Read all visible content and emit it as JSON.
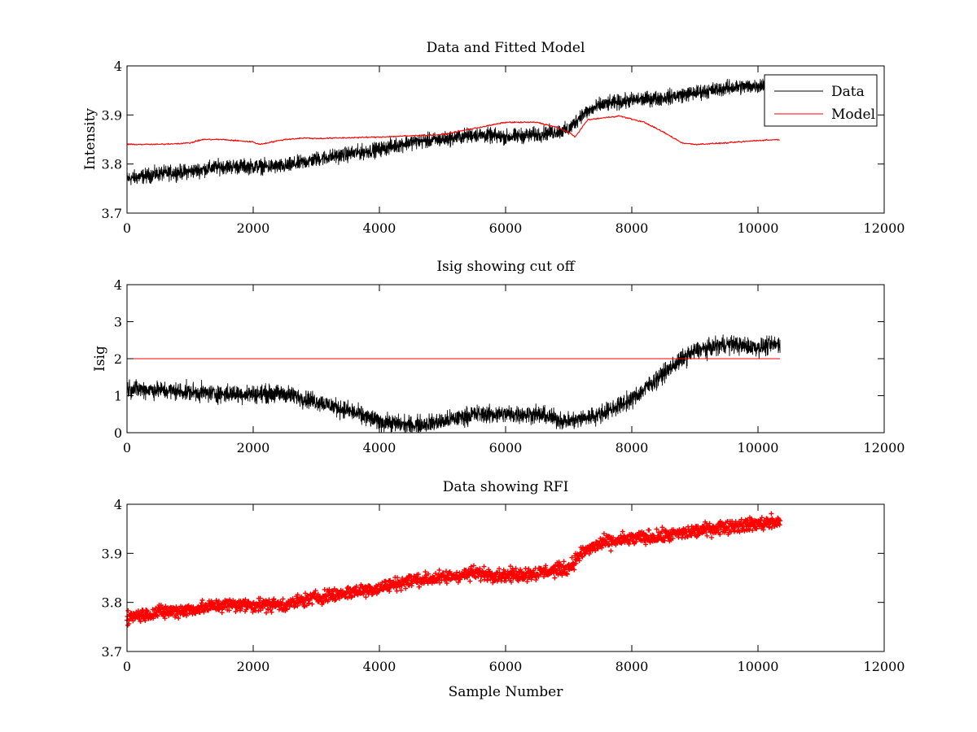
{
  "chart_data": [
    {
      "type": "line",
      "title": "Data and Fitted Model",
      "xlabel": "",
      "ylabel": "Intensity",
      "xlim": [
        0,
        12000
      ],
      "ylim": [
        3.7,
        4.0
      ],
      "xticks": [
        0,
        2000,
        4000,
        6000,
        8000,
        10000,
        12000
      ],
      "yticks": [
        3.7,
        3.8,
        3.9,
        4.0
      ],
      "xtick_labels": [
        "0",
        "2000",
        "4000",
        "6000",
        "8000",
        "10000",
        "12000"
      ],
      "ytick_labels": [
        "3.7",
        "3.8",
        "3.9",
        "4"
      ],
      "legend": {
        "position": "top-right",
        "entries": [
          "Data",
          "Model"
        ]
      },
      "series": [
        {
          "name": "Data",
          "color": "#000000",
          "x": [
            0,
            500,
            1000,
            1500,
            2000,
            2500,
            3000,
            3500,
            4000,
            4500,
            5000,
            5500,
            6000,
            6500,
            7000,
            7200,
            7500,
            8000,
            8500,
            9000,
            9500,
            10000,
            10350
          ],
          "y": [
            3.77,
            3.78,
            3.785,
            3.795,
            3.795,
            3.795,
            3.81,
            3.82,
            3.83,
            3.845,
            3.85,
            3.86,
            3.855,
            3.86,
            3.87,
            3.9,
            3.92,
            3.93,
            3.935,
            3.945,
            3.955,
            3.96,
            3.965
          ],
          "noise_amplitude": 0.022
        },
        {
          "name": "Model",
          "color": "#ff0000",
          "x": [
            0,
            500,
            1000,
            1200,
            1500,
            1800,
            2000,
            2100,
            2500,
            2800,
            3000,
            4000,
            5000,
            6000,
            6500,
            6800,
            7000,
            7100,
            7300,
            7800,
            8200,
            8500,
            8800,
            9000,
            9500,
            10000,
            10350
          ],
          "y": [
            3.84,
            3.84,
            3.843,
            3.85,
            3.85,
            3.847,
            3.845,
            3.84,
            3.85,
            3.853,
            3.852,
            3.855,
            3.86,
            3.885,
            3.885,
            3.875,
            3.865,
            3.855,
            3.89,
            3.898,
            3.885,
            3.865,
            3.843,
            3.84,
            3.843,
            3.848,
            3.85
          ],
          "noise_amplitude": 0.002
        }
      ]
    },
    {
      "type": "line",
      "title": "Isig showing cut off",
      "xlabel": "",
      "ylabel": "Isig",
      "xlim": [
        0,
        12000
      ],
      "ylim": [
        0,
        4
      ],
      "xticks": [
        0,
        2000,
        4000,
        6000,
        8000,
        10000,
        12000
      ],
      "yticks": [
        0,
        1,
        2,
        3,
        4
      ],
      "xtick_labels": [
        "0",
        "2000",
        "4000",
        "6000",
        "8000",
        "10000",
        "12000"
      ],
      "ytick_labels": [
        "0",
        "1",
        "2",
        "3",
        "4"
      ],
      "series": [
        {
          "name": "Isig",
          "color": "#000000",
          "x": [
            0,
            500,
            1000,
            1500,
            2000,
            2500,
            3000,
            3500,
            4000,
            4500,
            5000,
            5500,
            6000,
            6500,
            7000,
            7500,
            8000,
            8500,
            8800,
            9000,
            9500,
            10000,
            10350
          ],
          "y": [
            1.2,
            1.15,
            1.1,
            1.05,
            1.05,
            1.05,
            0.85,
            0.6,
            0.3,
            0.2,
            0.3,
            0.5,
            0.5,
            0.5,
            0.3,
            0.5,
            0.9,
            1.6,
            2.0,
            2.2,
            2.4,
            2.3,
            2.4
          ],
          "noise_amplitude": 0.35
        },
        {
          "name": "Cut off",
          "color": "#ff0000",
          "x": [
            0,
            10350
          ],
          "y": [
            2,
            2
          ]
        }
      ]
    },
    {
      "type": "scatter",
      "title": "Data showing RFI",
      "xlabel": "Sample Number",
      "ylabel": "",
      "xlim": [
        0,
        12000
      ],
      "ylim": [
        3.7,
        4.0
      ],
      "xticks": [
        0,
        2000,
        4000,
        6000,
        8000,
        10000,
        12000
      ],
      "yticks": [
        3.7,
        3.8,
        3.9,
        4.0
      ],
      "xtick_labels": [
        "0",
        "2000",
        "4000",
        "6000",
        "8000",
        "10000",
        "12000"
      ],
      "ytick_labels": [
        "3.7",
        "3.8",
        "3.9",
        "4"
      ],
      "series": [
        {
          "name": "RFI",
          "color": "#ff0000",
          "marker": "+",
          "x": [
            0,
            500,
            1000,
            1500,
            2000,
            2500,
            3000,
            3500,
            4000,
            4500,
            5000,
            5500,
            6000,
            6500,
            7000,
            7200,
            7500,
            8000,
            8500,
            9000,
            9500,
            10000,
            10350
          ],
          "y": [
            3.77,
            3.78,
            3.785,
            3.795,
            3.795,
            3.795,
            3.81,
            3.82,
            3.83,
            3.845,
            3.85,
            3.86,
            3.855,
            3.86,
            3.87,
            3.9,
            3.92,
            3.93,
            3.935,
            3.945,
            3.955,
            3.96,
            3.965
          ],
          "noise_amplitude": 0.02
        }
      ]
    }
  ]
}
